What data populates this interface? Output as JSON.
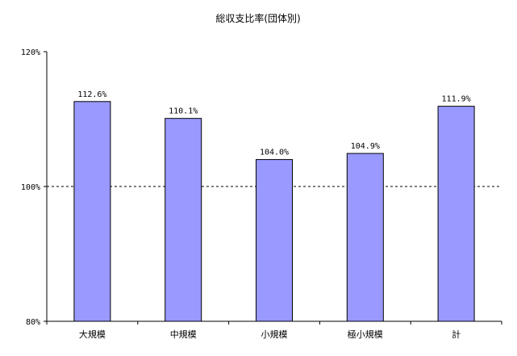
{
  "chart_data": {
    "type": "bar",
    "title": "総収支比率(団体別)",
    "xlabel": "",
    "ylabel": "",
    "categories": [
      "大規模",
      "中規模",
      "小規模",
      "極小規模",
      "計"
    ],
    "values": [
      112.6,
      110.1,
      104.0,
      104.9,
      111.9
    ],
    "data_labels": [
      "112.6%",
      "110.1%",
      "104.0%",
      "104.9%",
      "111.9%"
    ],
    "ylim": [
      80,
      120
    ],
    "yticks": [
      80,
      100,
      120
    ],
    "ytick_labels": [
      "80%",
      "100%",
      "120%"
    ],
    "reference_line": 100,
    "bar_color": "#9999ff",
    "bar_edge_color": "#000000",
    "grid": false
  }
}
